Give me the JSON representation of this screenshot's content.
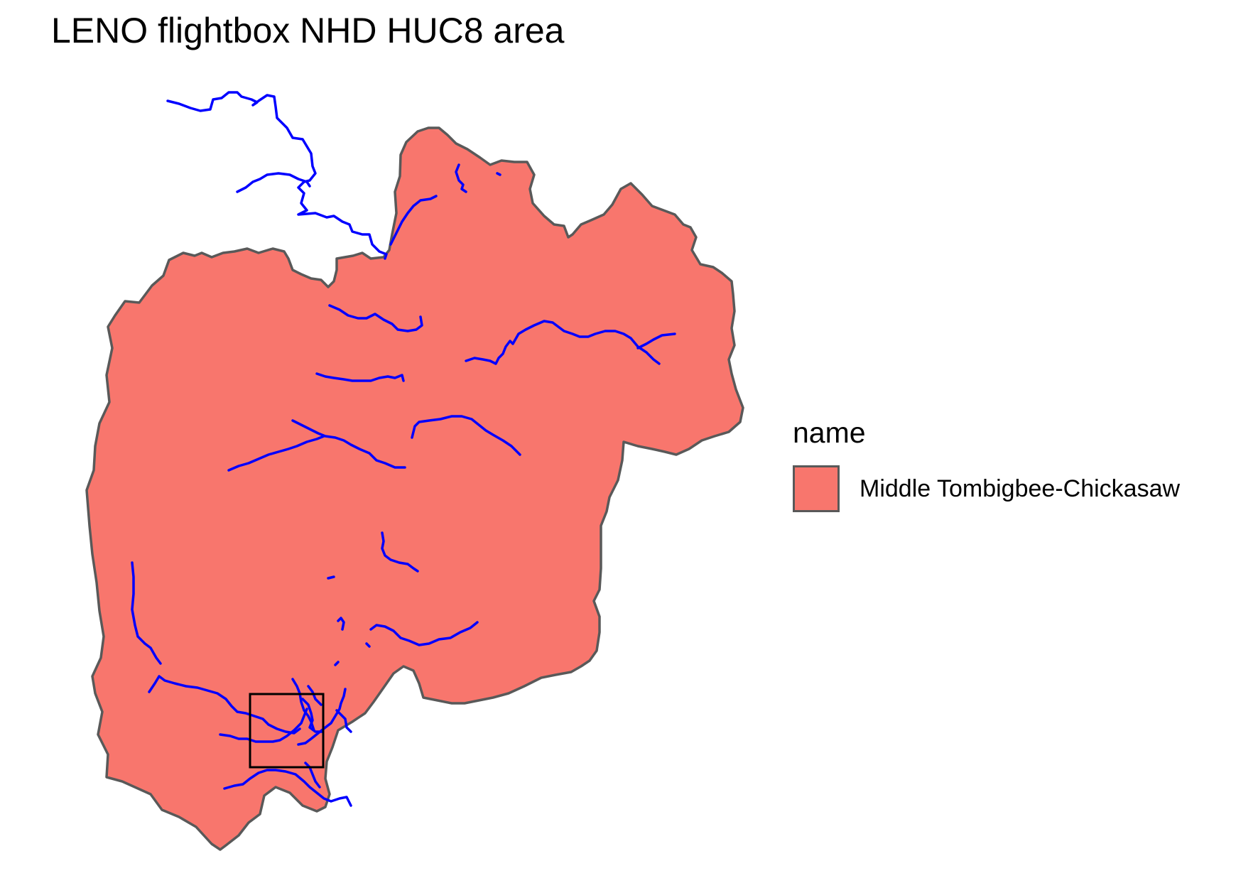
{
  "title": "LENO flightbox NHD HUC8 area",
  "legend": {
    "title": "name",
    "items": [
      {
        "label": "Middle Tombigbee-Chickasaw",
        "fill": "#F8766D"
      }
    ]
  },
  "colors": {
    "area_fill": "#F8766D",
    "area_outline": "#595959",
    "flowline": "#0000FF",
    "flightbox_outline": "#000000",
    "background": "#FFFFFF"
  }
}
